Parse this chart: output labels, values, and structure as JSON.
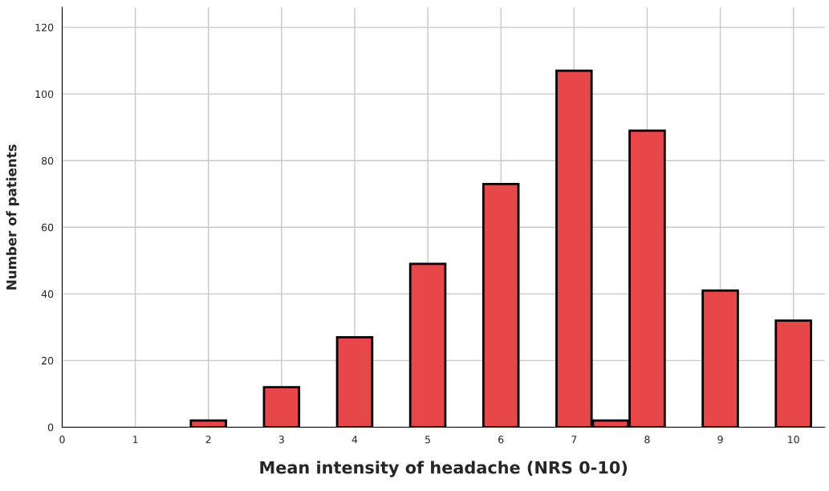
{
  "chart_data": {
    "type": "bar",
    "xlabel": "Mean intensity of headache (NRS 0-10)",
    "ylabel": "Number of patients",
    "x": [
      2,
      3,
      4,
      5,
      6,
      7,
      7.5,
      8,
      9,
      10
    ],
    "values": [
      2,
      12,
      27,
      49,
      73,
      107,
      2,
      89,
      41,
      32
    ],
    "color": "#e8474a",
    "xlim": [
      0,
      10.43
    ],
    "ylim": [
      0,
      126
    ],
    "xticks": [
      0,
      1,
      2,
      3,
      4,
      5,
      6,
      7,
      8,
      9,
      10
    ],
    "yticks": [
      0,
      20,
      40,
      60,
      80,
      100,
      120
    ],
    "grid": true
  }
}
